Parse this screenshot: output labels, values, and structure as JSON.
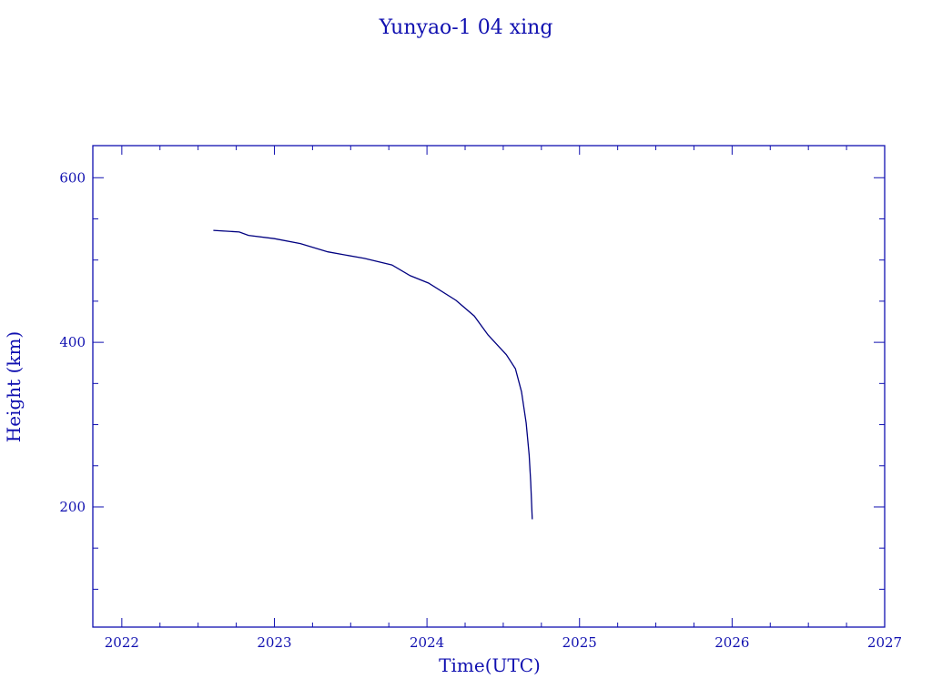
{
  "chart_data": {
    "type": "line",
    "title": "Yunyao-1 04 xing",
    "xlabel": "Time(UTC)",
    "ylabel": "Height (km)",
    "xlim": [
      2021.81,
      2027.0
    ],
    "ylim": [
      54,
      639
    ],
    "x_ticks": [
      2022,
      2023,
      2024,
      2025,
      2026,
      2027
    ],
    "x_tick_labels": [
      "2022",
      "2023",
      "2024",
      "2025",
      "2026",
      "2027"
    ],
    "x_minor_step": 0.25,
    "y_ticks": [
      200,
      400,
      600
    ],
    "y_tick_labels": [
      "200",
      "400",
      "600"
    ],
    "y_minor_step": 50,
    "grid": false,
    "color": "#000080",
    "axis_color": "#1010b0",
    "series": [
      {
        "x": [
          2022.6,
          2022.77,
          2022.83,
          2023.0,
          2023.17,
          2023.35,
          2023.59,
          2023.77,
          2023.89,
          2024.01,
          2024.19,
          2024.31,
          2024.4,
          2024.52,
          2024.58,
          2024.62,
          2024.65,
          2024.67,
          2024.68,
          2024.69
        ],
        "y": [
          536,
          534,
          530,
          526,
          520,
          510,
          502,
          494,
          481,
          472,
          451,
          432,
          409,
          385,
          368,
          340,
          302,
          263,
          230,
          185
        ]
      }
    ]
  }
}
